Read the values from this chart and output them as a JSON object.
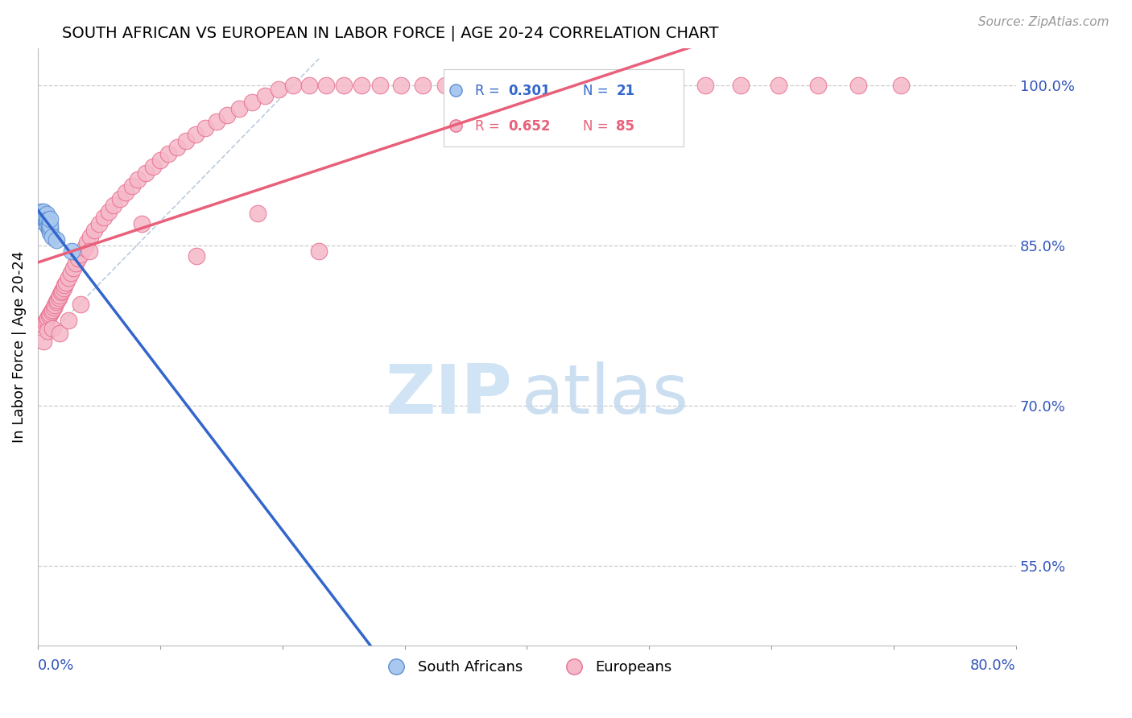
{
  "title": "SOUTH AFRICAN VS EUROPEAN IN LABOR FORCE | AGE 20-24 CORRELATION CHART",
  "source": "Source: ZipAtlas.com",
  "ylabel": "In Labor Force | Age 20-24",
  "x_min": 0.0,
  "x_max": 0.8,
  "y_min": 0.475,
  "y_max": 1.035,
  "y_ticks": [
    0.55,
    0.7,
    0.85,
    1.0
  ],
  "y_tick_labels": [
    "55.0%",
    "70.0%",
    "85.0%",
    "100.0%"
  ],
  "x_ticks": [
    0.0,
    0.8
  ],
  "x_tick_labels": [
    "0.0%",
    "80.0%"
  ],
  "R_blue": 0.301,
  "N_blue": 21,
  "R_pink": 0.652,
  "N_pink": 85,
  "legend_blue": "South Africans",
  "legend_pink": "Europeans",
  "blue_scatter_color": "#A8C8F0",
  "pink_scatter_color": "#F5B8C8",
  "blue_edge_color": "#6090D0",
  "pink_edge_color": "#E87090",
  "blue_line_color": "#3366CC",
  "pink_line_color": "#E8607A",
  "grid_color": "#CCCCCC",
  "ref_line_color": "#BBCCDD",
  "sa_x": [
    0.002,
    0.003,
    0.003,
    0.004,
    0.005,
    0.005,
    0.006,
    0.006,
    0.007,
    0.007,
    0.008,
    0.008,
    0.009,
    0.009,
    0.01,
    0.01,
    0.01,
    0.01,
    0.012,
    0.015,
    0.028
  ],
  "sa_y": [
    0.873,
    0.877,
    0.882,
    0.878,
    0.876,
    0.882,
    0.875,
    0.878,
    0.872,
    0.879,
    0.868,
    0.874,
    0.866,
    0.87,
    0.862,
    0.866,
    0.869,
    0.875,
    0.858,
    0.855,
    0.845
  ],
  "eu_x": [
    0.005,
    0.006,
    0.007,
    0.008,
    0.009,
    0.01,
    0.011,
    0.012,
    0.013,
    0.014,
    0.015,
    0.016,
    0.017,
    0.018,
    0.019,
    0.02,
    0.021,
    0.022,
    0.023,
    0.025,
    0.027,
    0.029,
    0.031,
    0.033,
    0.035,
    0.038,
    0.04,
    0.043,
    0.046,
    0.05,
    0.054,
    0.058,
    0.062,
    0.067,
    0.072,
    0.077,
    0.082,
    0.088,
    0.094,
    0.1,
    0.107,
    0.114,
    0.121,
    0.129,
    0.137,
    0.146,
    0.155,
    0.165,
    0.175,
    0.186,
    0.197,
    0.209,
    0.222,
    0.236,
    0.25,
    0.265,
    0.28,
    0.297,
    0.315,
    0.333,
    0.352,
    0.372,
    0.394,
    0.416,
    0.44,
    0.465,
    0.49,
    0.517,
    0.546,
    0.575,
    0.606,
    0.638,
    0.671,
    0.706,
    0.042,
    0.085,
    0.13,
    0.18,
    0.23,
    0.005,
    0.008,
    0.012,
    0.018,
    0.025,
    0.035
  ],
  "eu_y": [
    0.775,
    0.778,
    0.78,
    0.782,
    0.784,
    0.786,
    0.788,
    0.79,
    0.792,
    0.794,
    0.797,
    0.799,
    0.801,
    0.803,
    0.806,
    0.808,
    0.81,
    0.813,
    0.815,
    0.82,
    0.824,
    0.829,
    0.833,
    0.838,
    0.842,
    0.848,
    0.853,
    0.858,
    0.864,
    0.87,
    0.876,
    0.882,
    0.888,
    0.894,
    0.9,
    0.906,
    0.912,
    0.918,
    0.924,
    0.93,
    0.936,
    0.942,
    0.948,
    0.954,
    0.96,
    0.966,
    0.972,
    0.978,
    0.984,
    0.99,
    0.996,
    1.0,
    1.0,
    1.0,
    1.0,
    1.0,
    1.0,
    1.0,
    1.0,
    1.0,
    1.0,
    1.0,
    1.0,
    1.0,
    1.0,
    1.0,
    1.0,
    1.0,
    1.0,
    1.0,
    1.0,
    1.0,
    1.0,
    1.0,
    0.845,
    0.87,
    0.84,
    0.88,
    0.845,
    0.76,
    0.77,
    0.772,
    0.768,
    0.78,
    0.795
  ]
}
